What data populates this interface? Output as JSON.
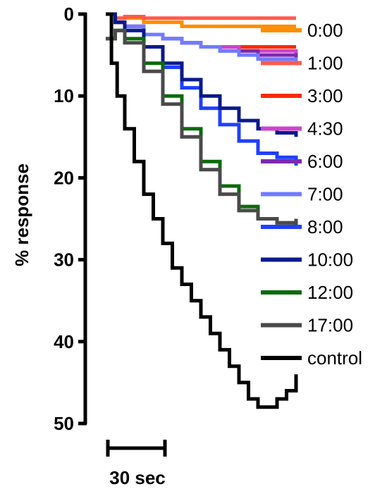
{
  "chart_data": {
    "type": "line",
    "ylabel": "% response",
    "ylim": [
      0,
      50
    ],
    "y_inverted": true,
    "yticks": [
      0,
      10,
      20,
      30,
      40,
      50
    ],
    "x_unit": "sec",
    "xlim": [
      0,
      100
    ],
    "scale_bar": {
      "length": 30,
      "label": "30 sec"
    },
    "legend_position": "right",
    "series": [
      {
        "name": "0:00",
        "color": "#FF8C00",
        "x": [
          0,
          5,
          10,
          20,
          30,
          40,
          50,
          60,
          70,
          80,
          90,
          100
        ],
        "y": [
          0,
          0.5,
          0.5,
          1.0,
          1.0,
          1.5,
          1.5,
          1.5,
          1.5,
          1.5,
          1.5,
          1.5
        ]
      },
      {
        "name": "1:00",
        "color": "#FF5A4D",
        "x": [
          0,
          5,
          10,
          20,
          30,
          40,
          50,
          60,
          70,
          80,
          90,
          100
        ],
        "y": [
          0,
          0.5,
          0.3,
          0.5,
          0.5,
          0.5,
          0.5,
          0.5,
          0.5,
          0.5,
          0.5,
          0.5
        ]
      },
      {
        "name": "3:00",
        "color": "#FF2A00",
        "x": [
          0,
          5,
          10,
          20,
          30,
          40,
          50,
          60,
          70,
          80,
          90,
          100
        ],
        "y": [
          0,
          1.0,
          1.5,
          2.5,
          3.0,
          3.5,
          4.0,
          4.0,
          4.0,
          4.0,
          4.0,
          4.0
        ]
      },
      {
        "name": "4:30",
        "color": "#CC44CC",
        "x": [
          0,
          5,
          10,
          20,
          30,
          40,
          50,
          60,
          70,
          80,
          90,
          100
        ],
        "y": [
          0,
          1.0,
          1.5,
          2.5,
          3.0,
          3.5,
          4.0,
          4.0,
          4.5,
          4.5,
          4.5,
          5.0
        ]
      },
      {
        "name": "6:00",
        "color": "#7B2AB0",
        "x": [
          0,
          5,
          10,
          20,
          30,
          40,
          50,
          60,
          70,
          80,
          90,
          100
        ],
        "y": [
          0,
          1.0,
          1.5,
          2.5,
          3.0,
          3.5,
          4.0,
          4.5,
          4.5,
          5.0,
          5.0,
          5.5
        ]
      },
      {
        "name": "7:00",
        "color": "#6F7CFF",
        "x": [
          0,
          5,
          10,
          20,
          30,
          40,
          50,
          60,
          70,
          80,
          90,
          100
        ],
        "y": [
          0,
          1.0,
          1.5,
          2.5,
          3.0,
          3.5,
          4.0,
          4.5,
          5.0,
          5.5,
          5.5,
          6.0
        ]
      },
      {
        "name": "8:00",
        "color": "#1F3FFF",
        "x": [
          0,
          5,
          10,
          20,
          30,
          40,
          50,
          60,
          70,
          80,
          90,
          100
        ],
        "y": [
          0,
          1.0,
          2.0,
          4.0,
          6.5,
          9.0,
          11.5,
          13.5,
          15.5,
          17.0,
          17.5,
          18.5
        ]
      },
      {
        "name": "10:00",
        "color": "#0A1A8C",
        "x": [
          0,
          5,
          10,
          20,
          30,
          40,
          50,
          60,
          70,
          80,
          90,
          100
        ],
        "y": [
          0,
          1.0,
          2.0,
          4.0,
          6.0,
          8.0,
          10.0,
          11.5,
          13.0,
          14.0,
          14.5,
          15.0
        ]
      },
      {
        "name": "12:00",
        "color": "#0A6B0A",
        "x": [
          0,
          5,
          10,
          20,
          30,
          40,
          50,
          60,
          70,
          80,
          90,
          100
        ],
        "y": [
          3.0,
          2.0,
          3.0,
          6.0,
          10.0,
          14.0,
          18.0,
          21.0,
          23.5,
          25.0,
          25.5,
          26.0
        ]
      },
      {
        "name": "17:00",
        "color": "#4A4A4A",
        "x": [
          0,
          5,
          10,
          20,
          30,
          40,
          50,
          60,
          70,
          80,
          90,
          100
        ],
        "y": [
          3.0,
          2.0,
          3.5,
          7.0,
          11.0,
          15.0,
          19.0,
          22.0,
          24.0,
          25.0,
          25.5,
          25.0
        ]
      },
      {
        "name": "control",
        "color": "#000000",
        "x": [
          0,
          3,
          6,
          10,
          15,
          20,
          25,
          30,
          35,
          40,
          45,
          50,
          55,
          60,
          65,
          70,
          75,
          80,
          85,
          90,
          95,
          100
        ],
        "y": [
          0,
          6,
          10,
          14,
          18,
          22,
          25,
          28,
          31,
          33,
          35,
          37,
          39,
          41,
          43,
          45,
          47,
          48,
          48,
          47,
          46,
          44
        ]
      }
    ]
  }
}
